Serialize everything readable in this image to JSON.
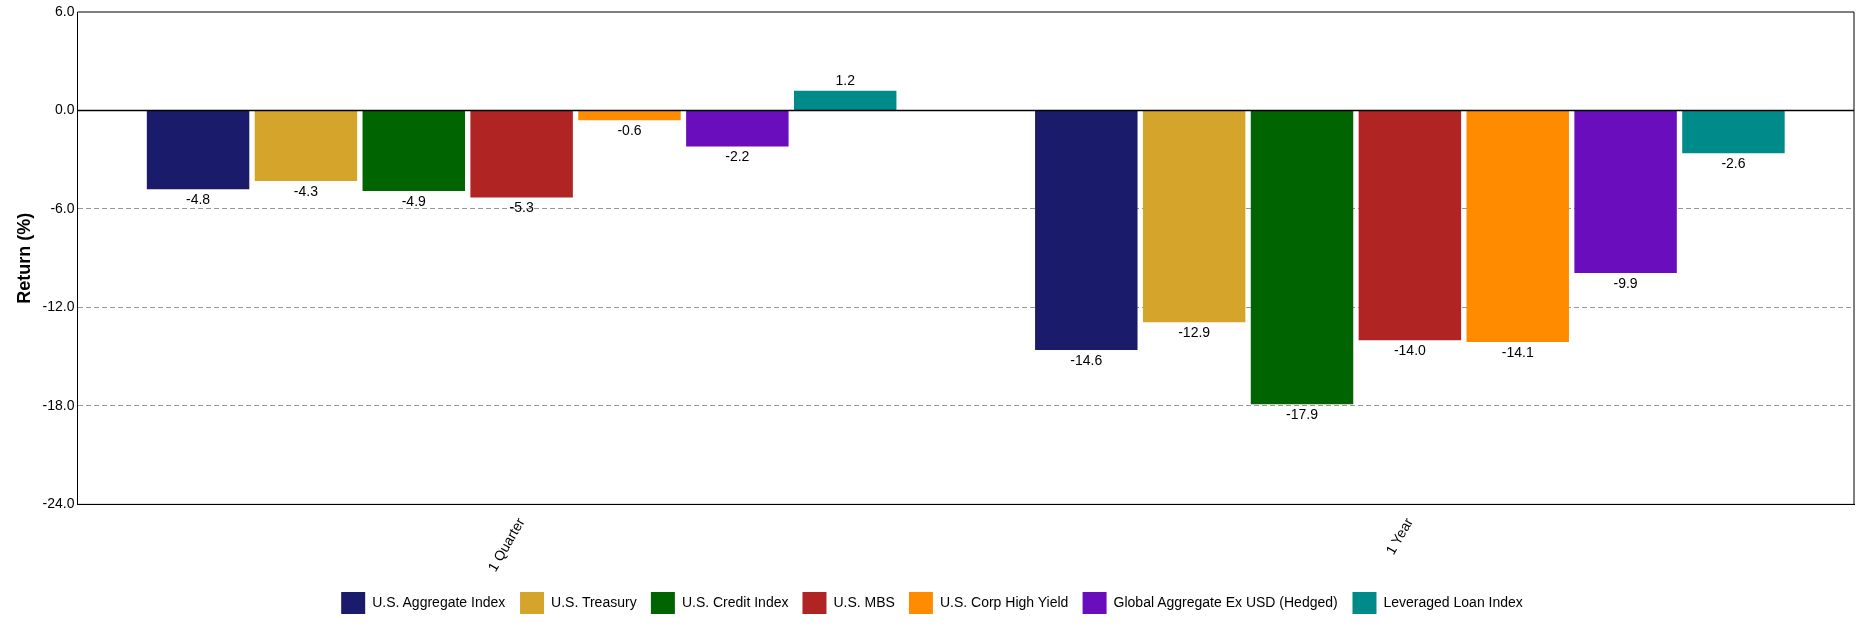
{
  "chart_data": {
    "type": "bar",
    "ylabel": "Return (%)",
    "categories": [
      "1 Quarter",
      "1 Year"
    ],
    "series": [
      {
        "name": "U.S. Aggregate Index",
        "color": "#1b1b6b",
        "values": [
          -4.8,
          -14.6
        ],
        "value_labels": [
          "-4.8",
          "-14.6"
        ]
      },
      {
        "name": "U.S. Treasury",
        "color": "#d4a52a",
        "values": [
          -4.3,
          -12.9
        ],
        "value_labels": [
          "-4.3",
          "-12.9"
        ]
      },
      {
        "name": "U.S. Credit Index",
        "color": "#006400",
        "values": [
          -4.9,
          -17.9
        ],
        "value_labels": [
          "-4.9",
          "-17.9"
        ]
      },
      {
        "name": "U.S. MBS",
        "color": "#b02424",
        "values": [
          -5.3,
          -14.0
        ],
        "value_labels": [
          "-5.3",
          "-14.0"
        ]
      },
      {
        "name": "U.S. Corp High Yield",
        "color": "#ff8c00",
        "values": [
          -0.6,
          -14.1
        ],
        "value_labels": [
          "-0.6",
          "-14.1"
        ]
      },
      {
        "name": "Global Aggregate Ex USD (Hedged)",
        "color": "#6a0dbd",
        "values": [
          -2.2,
          -9.9
        ],
        "value_labels": [
          "-2.2",
          "-9.9"
        ]
      },
      {
        "name": "Leveraged Loan Index",
        "color": "#008b8b",
        "values": [
          1.2,
          -2.6
        ],
        "value_labels": [
          "1.2",
          "-2.6"
        ]
      }
    ],
    "ylim": [
      -24,
      6
    ],
    "yticks": [
      {
        "value": 6,
        "label": "6.0"
      },
      {
        "value": 0,
        "label": "0.0"
      },
      {
        "value": -6,
        "label": "-6.0"
      },
      {
        "value": -12,
        "label": "-12.0"
      },
      {
        "value": -18,
        "label": "-18.0"
      },
      {
        "value": -24,
        "label": "-24.0"
      }
    ],
    "ref_lines": [
      {
        "axis": "y",
        "value": 0,
        "color": "#000000"
      }
    ],
    "grid": "y",
    "legend": "bottom"
  }
}
